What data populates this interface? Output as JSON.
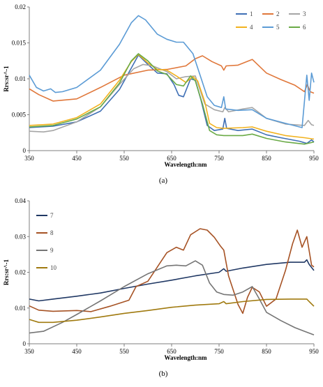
{
  "chart_data": [
    {
      "type": "line",
      "panel_label": "(a)",
      "xlabel": "Wavelength:nm",
      "ylabel": "Rrs:sr^-1",
      "xlim": [
        350,
        950
      ],
      "ylim": [
        0,
        0.02
      ],
      "x_ticks": [
        350,
        450,
        550,
        650,
        750,
        850,
        950
      ],
      "y_ticks": [
        0,
        0.005,
        0.01,
        0.015,
        0.02
      ],
      "y_tick_labels": [
        "0",
        "0.005",
        "0.01",
        "0.015",
        "0.02"
      ],
      "grid": false,
      "legend_position": "top-right",
      "legend_columns": 3,
      "series": [
        {
          "name": "1",
          "color": "#3f6fb5",
          "points": [
            [
              350,
              0.0032
            ],
            [
              400,
              0.0034
            ],
            [
              450,
              0.004
            ],
            [
              500,
              0.0055
            ],
            [
              540,
              0.0085
            ],
            [
              565,
              0.0115
            ],
            [
              580,
              0.0133
            ],
            [
              600,
              0.012
            ],
            [
              620,
              0.0108
            ],
            [
              640,
              0.0107
            ],
            [
              655,
              0.0092
            ],
            [
              665,
              0.0077
            ],
            [
              675,
              0.0075
            ],
            [
              690,
              0.01
            ],
            [
              700,
              0.0098
            ],
            [
              712,
              0.007
            ],
            [
              725,
              0.0035
            ],
            [
              740,
              0.0028
            ],
            [
              758,
              0.003
            ],
            [
              762,
              0.0045
            ],
            [
              766,
              0.0031
            ],
            [
              790,
              0.0028
            ],
            [
              820,
              0.003
            ],
            [
              850,
              0.0022
            ],
            [
              880,
              0.0018
            ],
            [
              920,
              0.0013
            ],
            [
              935,
              0.001
            ],
            [
              945,
              0.0015
            ],
            [
              950,
              0.0012
            ]
          ]
        },
        {
          "name": "2",
          "color": "#e0773a",
          "points": [
            [
              350,
              0.0086
            ],
            [
              370,
              0.0078
            ],
            [
              400,
              0.0069
            ],
            [
              450,
              0.0072
            ],
            [
              500,
              0.0088
            ],
            [
              550,
              0.0105
            ],
            [
              600,
              0.0112
            ],
            [
              640,
              0.0113
            ],
            [
              680,
              0.0118
            ],
            [
              700,
              0.0128
            ],
            [
              715,
              0.0132
            ],
            [
              735,
              0.0124
            ],
            [
              755,
              0.0118
            ],
            [
              760,
              0.0112
            ],
            [
              765,
              0.0118
            ],
            [
              790,
              0.0119
            ],
            [
              820,
              0.0127
            ],
            [
              850,
              0.0108
            ],
            [
              880,
              0.0099
            ],
            [
              910,
              0.0091
            ],
            [
              930,
              0.0082
            ],
            [
              936,
              0.0092
            ],
            [
              942,
              0.0082
            ],
            [
              950,
              0.008
            ]
          ]
        },
        {
          "name": "3",
          "color": "#a5a5a5",
          "points": [
            [
              350,
              0.0027
            ],
            [
              380,
              0.0026
            ],
            [
              400,
              0.0028
            ],
            [
              450,
              0.004
            ],
            [
              500,
              0.0061
            ],
            [
              540,
              0.0092
            ],
            [
              570,
              0.0114
            ],
            [
              590,
              0.012
            ],
            [
              610,
              0.0118
            ],
            [
              640,
              0.011
            ],
            [
              660,
              0.01
            ],
            [
              680,
              0.0103
            ],
            [
              700,
              0.0104
            ],
            [
              720,
              0.0065
            ],
            [
              740,
              0.0057
            ],
            [
              758,
              0.0054
            ],
            [
              762,
              0.006
            ],
            [
              770,
              0.0054
            ],
            [
              800,
              0.0058
            ],
            [
              820,
              0.006
            ],
            [
              850,
              0.0045
            ],
            [
              890,
              0.0037
            ],
            [
              930,
              0.0035
            ],
            [
              938,
              0.0042
            ],
            [
              945,
              0.0036
            ],
            [
              950,
              0.0035
            ]
          ]
        },
        {
          "name": "4",
          "color": "#f2b21e",
          "points": [
            [
              350,
              0.0035
            ],
            [
              400,
              0.0037
            ],
            [
              450,
              0.0046
            ],
            [
              500,
              0.0065
            ],
            [
              540,
              0.0098
            ],
            [
              565,
              0.0124
            ],
            [
              580,
              0.0134
            ],
            [
              600,
              0.0122
            ],
            [
              620,
              0.0113
            ],
            [
              640,
              0.0112
            ],
            [
              660,
              0.0104
            ],
            [
              680,
              0.0095
            ],
            [
              695,
              0.0103
            ],
            [
              705,
              0.0097
            ],
            [
              720,
              0.0068
            ],
            [
              730,
              0.0038
            ],
            [
              745,
              0.0032
            ],
            [
              760,
              0.0031
            ],
            [
              800,
              0.0032
            ],
            [
              820,
              0.0033
            ],
            [
              850,
              0.0027
            ],
            [
              890,
              0.0021
            ],
            [
              930,
              0.0018
            ],
            [
              950,
              0.0016
            ]
          ]
        },
        {
          "name": "5",
          "color": "#5b9bd5",
          "points": [
            [
              350,
              0.0105
            ],
            [
              365,
              0.0088
            ],
            [
              380,
              0.0083
            ],
            [
              395,
              0.0086
            ],
            [
              405,
              0.0081
            ],
            [
              420,
              0.0082
            ],
            [
              450,
              0.0088
            ],
            [
              500,
              0.0112
            ],
            [
              540,
              0.0148
            ],
            [
              565,
              0.0178
            ],
            [
              580,
              0.0188
            ],
            [
              595,
              0.0182
            ],
            [
              620,
              0.0162
            ],
            [
              640,
              0.0155
            ],
            [
              660,
              0.0151
            ],
            [
              675,
              0.0151
            ],
            [
              695,
              0.0135
            ],
            [
              710,
              0.0105
            ],
            [
              725,
              0.0075
            ],
            [
              740,
              0.0063
            ],
            [
              755,
              0.006
            ],
            [
              760,
              0.0075
            ],
            [
              764,
              0.0058
            ],
            [
              790,
              0.0056
            ],
            [
              820,
              0.0057
            ],
            [
              850,
              0.0045
            ],
            [
              890,
              0.0038
            ],
            [
              925,
              0.0032
            ],
            [
              935,
              0.0105
            ],
            [
              940,
              0.007
            ],
            [
              945,
              0.0108
            ],
            [
              950,
              0.0095
            ]
          ]
        },
        {
          "name": "6",
          "color": "#6aaa46",
          "points": [
            [
              350,
              0.0033
            ],
            [
              400,
              0.0035
            ],
            [
              450,
              0.0044
            ],
            [
              500,
              0.0061
            ],
            [
              540,
              0.0094
            ],
            [
              565,
              0.0125
            ],
            [
              580,
              0.0135
            ],
            [
              600,
              0.0125
            ],
            [
              620,
              0.0111
            ],
            [
              640,
              0.0106
            ],
            [
              660,
              0.0092
            ],
            [
              675,
              0.009
            ],
            [
              690,
              0.0104
            ],
            [
              700,
              0.0097
            ],
            [
              715,
              0.0065
            ],
            [
              730,
              0.0028
            ],
            [
              745,
              0.0022
            ],
            [
              760,
              0.0021
            ],
            [
              800,
              0.0021
            ],
            [
              820,
              0.0023
            ],
            [
              850,
              0.0017
            ],
            [
              890,
              0.0012
            ],
            [
              930,
              0.0009
            ],
            [
              950,
              0.0012
            ]
          ]
        }
      ]
    },
    {
      "type": "line",
      "panel_label": "(b)",
      "xlabel": "Wavelength:nm",
      "ylabel": "Rrs:sr^-1",
      "xlim": [
        350,
        950
      ],
      "ylim": [
        0,
        0.04
      ],
      "x_ticks": [
        350,
        450,
        550,
        650,
        750,
        850,
        950
      ],
      "y_ticks": [
        0,
        0.01,
        0.02,
        0.03,
        0.04
      ],
      "y_tick_labels": [
        "0",
        "0.01",
        "0.02",
        "0.03",
        "0.04"
      ],
      "grid": false,
      "legend_position": "top-left",
      "legend_columns": 1,
      "series": [
        {
          "name": "7",
          "color": "#203864",
          "points": [
            [
              350,
              0.0125
            ],
            [
              370,
              0.012
            ],
            [
              400,
              0.0125
            ],
            [
              450,
              0.0133
            ],
            [
              500,
              0.0142
            ],
            [
              550,
              0.0155
            ],
            [
              600,
              0.0167
            ],
            [
              650,
              0.0178
            ],
            [
              700,
              0.019
            ],
            [
              750,
              0.02
            ],
            [
              760,
              0.021
            ],
            [
              765,
              0.0203
            ],
            [
              800,
              0.0212
            ],
            [
              850,
              0.0222
            ],
            [
              900,
              0.0228
            ],
            [
              930,
              0.0228
            ],
            [
              935,
              0.0235
            ],
            [
              940,
              0.0222
            ],
            [
              950,
              0.0205
            ]
          ]
        },
        {
          "name": "8",
          "color": "#a65224",
          "points": [
            [
              350,
              0.0106
            ],
            [
              370,
              0.0094
            ],
            [
              400,
              0.0091
            ],
            [
              450,
              0.0093
            ],
            [
              480,
              0.009
            ],
            [
              520,
              0.0105
            ],
            [
              560,
              0.0122
            ],
            [
              575,
              0.016
            ],
            [
              600,
              0.0175
            ],
            [
              620,
              0.0215
            ],
            [
              640,
              0.0255
            ],
            [
              660,
              0.027
            ],
            [
              675,
              0.0262
            ],
            [
              690,
              0.0305
            ],
            [
              710,
              0.0322
            ],
            [
              725,
              0.0318
            ],
            [
              740,
              0.0298
            ],
            [
              752,
              0.0275
            ],
            [
              760,
              0.0262
            ],
            [
              770,
              0.019
            ],
            [
              790,
              0.011
            ],
            [
              800,
              0.0085
            ],
            [
              810,
              0.013
            ],
            [
              820,
              0.0158
            ],
            [
              835,
              0.0145
            ],
            [
              850,
              0.0105
            ],
            [
              870,
              0.0125
            ],
            [
              890,
              0.0205
            ],
            [
              905,
              0.028
            ],
            [
              915,
              0.0318
            ],
            [
              925,
              0.027
            ],
            [
              935,
              0.03
            ],
            [
              945,
              0.022
            ],
            [
              950,
              0.0215
            ]
          ]
        },
        {
          "name": "9",
          "color": "#757575",
          "points": [
            [
              350,
              0.003
            ],
            [
              380,
              0.0035
            ],
            [
              420,
              0.006
            ],
            [
              450,
              0.0082
            ],
            [
              500,
              0.012
            ],
            [
              550,
              0.016
            ],
            [
              600,
              0.0196
            ],
            [
              640,
              0.0218
            ],
            [
              660,
              0.022
            ],
            [
              680,
              0.0218
            ],
            [
              700,
              0.0232
            ],
            [
              715,
              0.022
            ],
            [
              730,
              0.017
            ],
            [
              745,
              0.0145
            ],
            [
              760,
              0.0138
            ],
            [
              780,
              0.0136
            ],
            [
              800,
              0.0145
            ],
            [
              820,
              0.016
            ],
            [
              835,
              0.0125
            ],
            [
              850,
              0.0088
            ],
            [
              880,
              0.0065
            ],
            [
              910,
              0.0045
            ],
            [
              930,
              0.0035
            ],
            [
              950,
              0.0025
            ]
          ]
        },
        {
          "name": "10",
          "color": "#a07a0f",
          "points": [
            [
              350,
              0.0068
            ],
            [
              370,
              0.006
            ],
            [
              400,
              0.006
            ],
            [
              450,
              0.0066
            ],
            [
              500,
              0.0075
            ],
            [
              550,
              0.0085
            ],
            [
              600,
              0.0093
            ],
            [
              650,
              0.0102
            ],
            [
              700,
              0.0108
            ],
            [
              750,
              0.0112
            ],
            [
              760,
              0.0118
            ],
            [
              765,
              0.0112
            ],
            [
              800,
              0.0118
            ],
            [
              850,
              0.0124
            ],
            [
              900,
              0.0125
            ],
            [
              935,
              0.0125
            ],
            [
              940,
              0.0118
            ],
            [
              950,
              0.0105
            ]
          ]
        }
      ]
    }
  ]
}
